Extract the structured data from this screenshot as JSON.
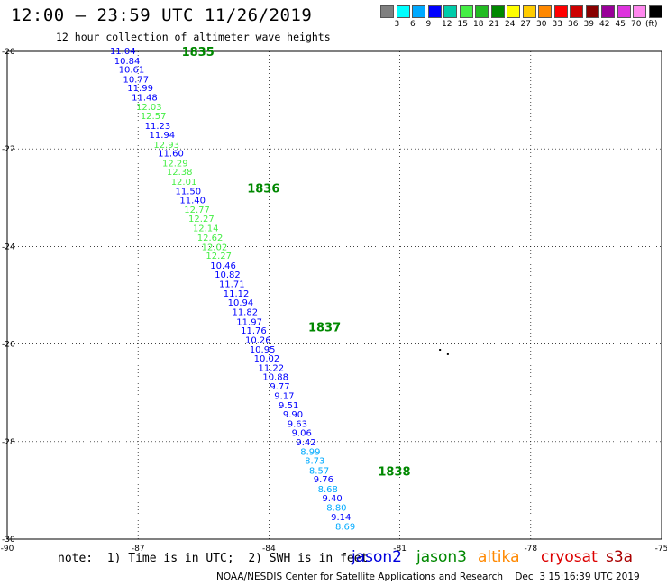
{
  "title": "12:00 – 23:59 UTC 11/26/2019",
  "subtitle": "12 hour collection of altimeter wave heights",
  "legend": {
    "unit_label": "(ft)",
    "items": [
      {
        "color": "#808080",
        "label": ""
      },
      {
        "color": "#00ffff",
        "label": "3"
      },
      {
        "color": "#00aaff",
        "label": "6"
      },
      {
        "color": "#0000ff",
        "label": "9"
      },
      {
        "color": "#00ccaa",
        "label": "12"
      },
      {
        "color": "#44ee44",
        "label": "15"
      },
      {
        "color": "#22bb22",
        "label": "18"
      },
      {
        "color": "#008800",
        "label": "21"
      },
      {
        "color": "#ffff00",
        "label": "24"
      },
      {
        "color": "#ffcc00",
        "label": "27"
      },
      {
        "color": "#ff8800",
        "label": "30"
      },
      {
        "color": "#ff0000",
        "label": "33"
      },
      {
        "color": "#cc0000",
        "label": "36"
      },
      {
        "color": "#880000",
        "label": "39"
      },
      {
        "color": "#990099",
        "label": "42"
      },
      {
        "color": "#dd33dd",
        "label": "45"
      },
      {
        "color": "#ff88ee",
        "label": "70"
      },
      {
        "color": "#000000",
        "label": ""
      }
    ]
  },
  "axes": {
    "lon_ticks": [
      "-90",
      "-87",
      "-84",
      "-81",
      "-78",
      "-75"
    ],
    "lat_ticks": [
      "-20",
      "-22",
      "-24",
      "-26",
      "-28",
      "-30"
    ]
  },
  "map_data": {
    "lon_range": [
      -90,
      -75
    ],
    "lat_range": [
      -30,
      -20
    ],
    "time_labels": [
      {
        "text": "1835",
        "lon": -86.0,
        "lat": -20.0
      },
      {
        "text": "1836",
        "lon": -84.5,
        "lat": -22.8
      },
      {
        "text": "1837",
        "lon": -83.1,
        "lat": -25.65
      },
      {
        "text": "1838",
        "lon": -81.5,
        "lat": -28.6
      }
    ],
    "points": [
      {
        "v": "11.04",
        "lon": -87.35,
        "lat": -20.0,
        "c": "#0000ff"
      },
      {
        "v": "10.84",
        "lon": -87.25,
        "lat": -20.2,
        "c": "#0000ff"
      },
      {
        "v": "10.61",
        "lon": -87.15,
        "lat": -20.38,
        "c": "#0000ff"
      },
      {
        "v": "10.77",
        "lon": -87.05,
        "lat": -20.58,
        "c": "#0000ff"
      },
      {
        "v": "11.99",
        "lon": -86.95,
        "lat": -20.76,
        "c": "#0000ff"
      },
      {
        "v": "11.48",
        "lon": -86.85,
        "lat": -20.95,
        "c": "#0000ff"
      },
      {
        "v": "12.03",
        "lon": -86.75,
        "lat": -21.15,
        "c": "#44ee44"
      },
      {
        "v": "12.57",
        "lon": -86.65,
        "lat": -21.33,
        "c": "#44ee44"
      },
      {
        "v": "11.23",
        "lon": -86.55,
        "lat": -21.53,
        "c": "#0000ff"
      },
      {
        "v": "11.94",
        "lon": -86.45,
        "lat": -21.72,
        "c": "#0000ff"
      },
      {
        "v": "12.93",
        "lon": -86.35,
        "lat": -21.92,
        "c": "#44ee44"
      },
      {
        "v": "11.60",
        "lon": -86.25,
        "lat": -22.1,
        "c": "#0000ff"
      },
      {
        "v": "12.29",
        "lon": -86.15,
        "lat": -22.3,
        "c": "#44ee44"
      },
      {
        "v": "12.38",
        "lon": -86.05,
        "lat": -22.48,
        "c": "#44ee44"
      },
      {
        "v": "12.01",
        "lon": -85.95,
        "lat": -22.68,
        "c": "#44ee44"
      },
      {
        "v": "11.50",
        "lon": -85.85,
        "lat": -22.87,
        "c": "#0000ff"
      },
      {
        "v": "11.40",
        "lon": -85.75,
        "lat": -23.06,
        "c": "#0000ff"
      },
      {
        "v": "12.77",
        "lon": -85.65,
        "lat": -23.25,
        "c": "#44ee44"
      },
      {
        "v": "12.27",
        "lon": -85.55,
        "lat": -23.44,
        "c": "#44ee44"
      },
      {
        "v": "12.14",
        "lon": -85.45,
        "lat": -23.63,
        "c": "#44ee44"
      },
      {
        "v": "12.62",
        "lon": -85.35,
        "lat": -23.83,
        "c": "#44ee44"
      },
      {
        "v": "12.02",
        "lon": -85.25,
        "lat": -24.02,
        "c": "#44ee44"
      },
      {
        "v": "12.27",
        "lon": -85.15,
        "lat": -24.2,
        "c": "#44ee44"
      },
      {
        "v": "10.46",
        "lon": -85.05,
        "lat": -24.4,
        "c": "#0000ff"
      },
      {
        "v": "10.82",
        "lon": -84.95,
        "lat": -24.58,
        "c": "#0000ff"
      },
      {
        "v": "11.71",
        "lon": -84.85,
        "lat": -24.78,
        "c": "#0000ff"
      },
      {
        "v": "11.12",
        "lon": -84.75,
        "lat": -24.97,
        "c": "#0000ff"
      },
      {
        "v": "10.94",
        "lon": -84.65,
        "lat": -25.16,
        "c": "#0000ff"
      },
      {
        "v": "11.82",
        "lon": -84.55,
        "lat": -25.35,
        "c": "#0000ff"
      },
      {
        "v": "11.97",
        "lon": -84.45,
        "lat": -25.55,
        "c": "#0000ff"
      },
      {
        "v": "11.76",
        "lon": -84.35,
        "lat": -25.73,
        "c": "#0000ff"
      },
      {
        "v": "10.26",
        "lon": -84.25,
        "lat": -25.92,
        "c": "#0000ff"
      },
      {
        "v": "10.95",
        "lon": -84.15,
        "lat": -26.12,
        "c": "#0000ff"
      },
      {
        "v": "10.02",
        "lon": -84.05,
        "lat": -26.3,
        "c": "#0000ff"
      },
      {
        "v": "11.22",
        "lon": -83.95,
        "lat": -26.5,
        "c": "#0000ff"
      },
      {
        "v": "10.88",
        "lon": -83.85,
        "lat": -26.68,
        "c": "#0000ff"
      },
      {
        "v": "9.77",
        "lon": -83.75,
        "lat": -26.88,
        "c": "#0000ff"
      },
      {
        "v": "9.17",
        "lon": -83.65,
        "lat": -27.07,
        "c": "#0000ff"
      },
      {
        "v": "9.51",
        "lon": -83.55,
        "lat": -27.26,
        "c": "#0000ff"
      },
      {
        "v": "9.90",
        "lon": -83.45,
        "lat": -27.45,
        "c": "#0000ff"
      },
      {
        "v": "9.63",
        "lon": -83.35,
        "lat": -27.64,
        "c": "#0000ff"
      },
      {
        "v": "9.06",
        "lon": -83.25,
        "lat": -27.83,
        "c": "#0000ff"
      },
      {
        "v": "9.42",
        "lon": -83.15,
        "lat": -28.02,
        "c": "#0000ff"
      },
      {
        "v": "8.99",
        "lon": -83.05,
        "lat": -28.22,
        "c": "#00aaff"
      },
      {
        "v": "8.73",
        "lon": -82.95,
        "lat": -28.4,
        "c": "#00aaff"
      },
      {
        "v": "8.57",
        "lon": -82.85,
        "lat": -28.6,
        "c": "#00aaff"
      },
      {
        "v": "9.76",
        "lon": -82.75,
        "lat": -28.78,
        "c": "#0000ff"
      },
      {
        "v": "8.68",
        "lon": -82.65,
        "lat": -28.98,
        "c": "#00aaff"
      },
      {
        "v": "9.40",
        "lon": -82.55,
        "lat": -29.17,
        "c": "#0000ff"
      },
      {
        "v": "8.80",
        "lon": -82.45,
        "lat": -29.36,
        "c": "#00aaff"
      },
      {
        "v": "9.14",
        "lon": -82.35,
        "lat": -29.56,
        "c": "#0000ff"
      },
      {
        "v": "8.69",
        "lon": -82.25,
        "lat": -29.75,
        "c": "#00aaff"
      }
    ],
    "islands": [
      {
        "lon": -80.1,
        "lat": -26.1
      },
      {
        "lon": -79.92,
        "lat": -26.19
      }
    ]
  },
  "note": "note:  1) Time is in UTC;  2) SWH is in feet",
  "satellites": [
    {
      "name": "jason2",
      "color": "#0000dd"
    },
    {
      "name": "jason3",
      "color": "#008800"
    },
    {
      "name": "altika",
      "color": "#ff8800"
    },
    {
      "name": "cryosat",
      "color": "#dd0000"
    },
    {
      "name": "s3a",
      "color": "#aa0000"
    }
  ],
  "credit": "NOAA/NESDIS Center for Satellite Applications and Research    Dec  3 15:16:39 UTC 2019"
}
